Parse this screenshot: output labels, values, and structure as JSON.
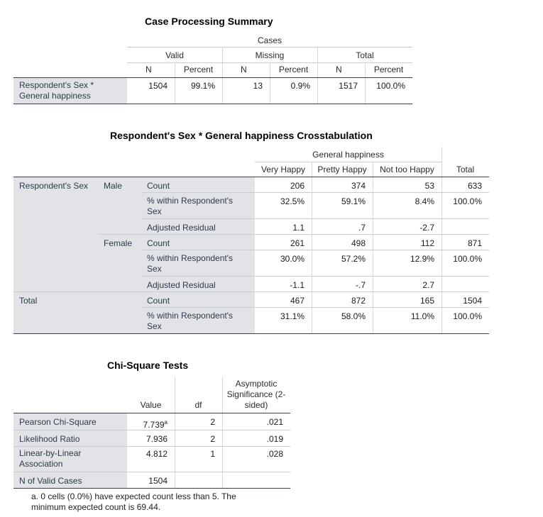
{
  "case_summary": {
    "title": "Case Processing Summary",
    "cases_label": "Cases",
    "groups": [
      "Valid",
      "Missing",
      "Total"
    ],
    "sub_headers": [
      "N",
      "Percent",
      "N",
      "Percent",
      "N",
      "Percent"
    ],
    "row_label": "Respondent's Sex * General happiness",
    "values": [
      "1504",
      "99.1%",
      "13",
      "0.9%",
      "1517",
      "100.0%"
    ]
  },
  "crosstab": {
    "title": "Respondent's Sex * General happiness Crosstabulation",
    "col_group": "General happiness",
    "columns": [
      "Very Happy",
      "Pretty Happy",
      "Not too Happy"
    ],
    "total_label": "Total",
    "row_var": "Respondent's Sex",
    "male": "Male",
    "female": "Female",
    "total_row": "Total",
    "stat_count": "Count",
    "stat_within": "% within Respondent's Sex",
    "stat_resid": "Adjusted Residual",
    "rows": [
      [
        "206",
        "374",
        "53",
        "633"
      ],
      [
        "32.5%",
        "59.1%",
        "8.4%",
        "100.0%"
      ],
      [
        "1.1",
        ".7",
        "-2.7",
        ""
      ],
      [
        "261",
        "498",
        "112",
        "871"
      ],
      [
        "30.0%",
        "57.2%",
        "12.9%",
        "100.0%"
      ],
      [
        "-1.1",
        "-.7",
        "2.7",
        ""
      ],
      [
        "467",
        "872",
        "165",
        "1504"
      ],
      [
        "31.1%",
        "58.0%",
        "11.0%",
        "100.0%"
      ]
    ]
  },
  "chisq": {
    "title": "Chi-Square Tests",
    "col_value": "Value",
    "col_df": "df",
    "col_sig": "Asymptotic Significance (2-sided)",
    "rows": [
      {
        "label": "Pearson Chi-Square",
        "value": "7.739",
        "sup": "a",
        "df": "2",
        "sig": ".021"
      },
      {
        "label": "Likelihood Ratio",
        "value": "7.936",
        "sup": "",
        "df": "2",
        "sig": ".019"
      },
      {
        "label": "Linear-by-Linear Association",
        "value": "4.812",
        "sup": "",
        "df": "1",
        "sig": ".028"
      },
      {
        "label": "N of Valid Cases",
        "value": "1504",
        "sup": "",
        "df": "",
        "sig": ""
      }
    ],
    "footnote": "a. 0 cells (0.0%) have expected count less than 5. The minimum expected count is 69.44."
  }
}
